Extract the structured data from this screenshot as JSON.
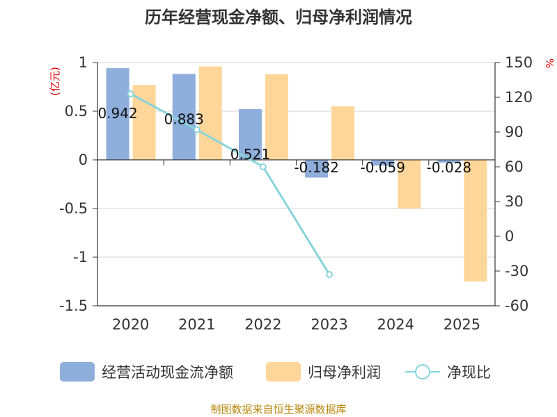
{
  "chart_data": {
    "type": "bar",
    "title": "历年经营现金净额、归母净利润情况",
    "categories": [
      "2020",
      "2021",
      "2022",
      "2023",
      "2024",
      "2025"
    ],
    "series": [
      {
        "name": "经营活动现金流净额",
        "kind": "bar",
        "axis": "left",
        "values": [
          0.942,
          0.883,
          0.521,
          -0.182,
          -0.059,
          -0.028
        ],
        "labels": [
          "0.942",
          "0.883",
          "0.521",
          "-0.182",
          "-0.059",
          "-0.028"
        ],
        "color": "#8eaedb"
      },
      {
        "name": "归母净利润",
        "kind": "bar",
        "axis": "left",
        "values": [
          0.77,
          0.96,
          0.88,
          0.55,
          -0.5,
          -1.25
        ],
        "color": "#ffd699"
      },
      {
        "name": "净现比",
        "kind": "line",
        "axis": "right",
        "values": [
          123,
          92,
          60,
          -33,
          null,
          null
        ],
        "color": "#88d4db"
      }
    ],
    "left_axis": {
      "unit": "(亿元)",
      "ylim": [
        -1.5,
        1
      ],
      "ticks": [
        1,
        0.5,
        0,
        -0.5,
        -1,
        -1.5
      ],
      "tick_labels": [
        "1",
        "0.5",
        "0",
        "-0.5",
        "-1",
        "-1.5"
      ]
    },
    "right_axis": {
      "unit": "%",
      "ylim": [
        -60,
        150
      ],
      "ticks": [
        150,
        120,
        90,
        60,
        30,
        0,
        -30,
        -60
      ],
      "tick_labels": [
        "150",
        "120",
        "90",
        "60",
        "30",
        "0",
        "-30",
        "-60"
      ]
    },
    "legend_position": "bottom",
    "source": "制图数据来自恒生聚源数据库"
  }
}
